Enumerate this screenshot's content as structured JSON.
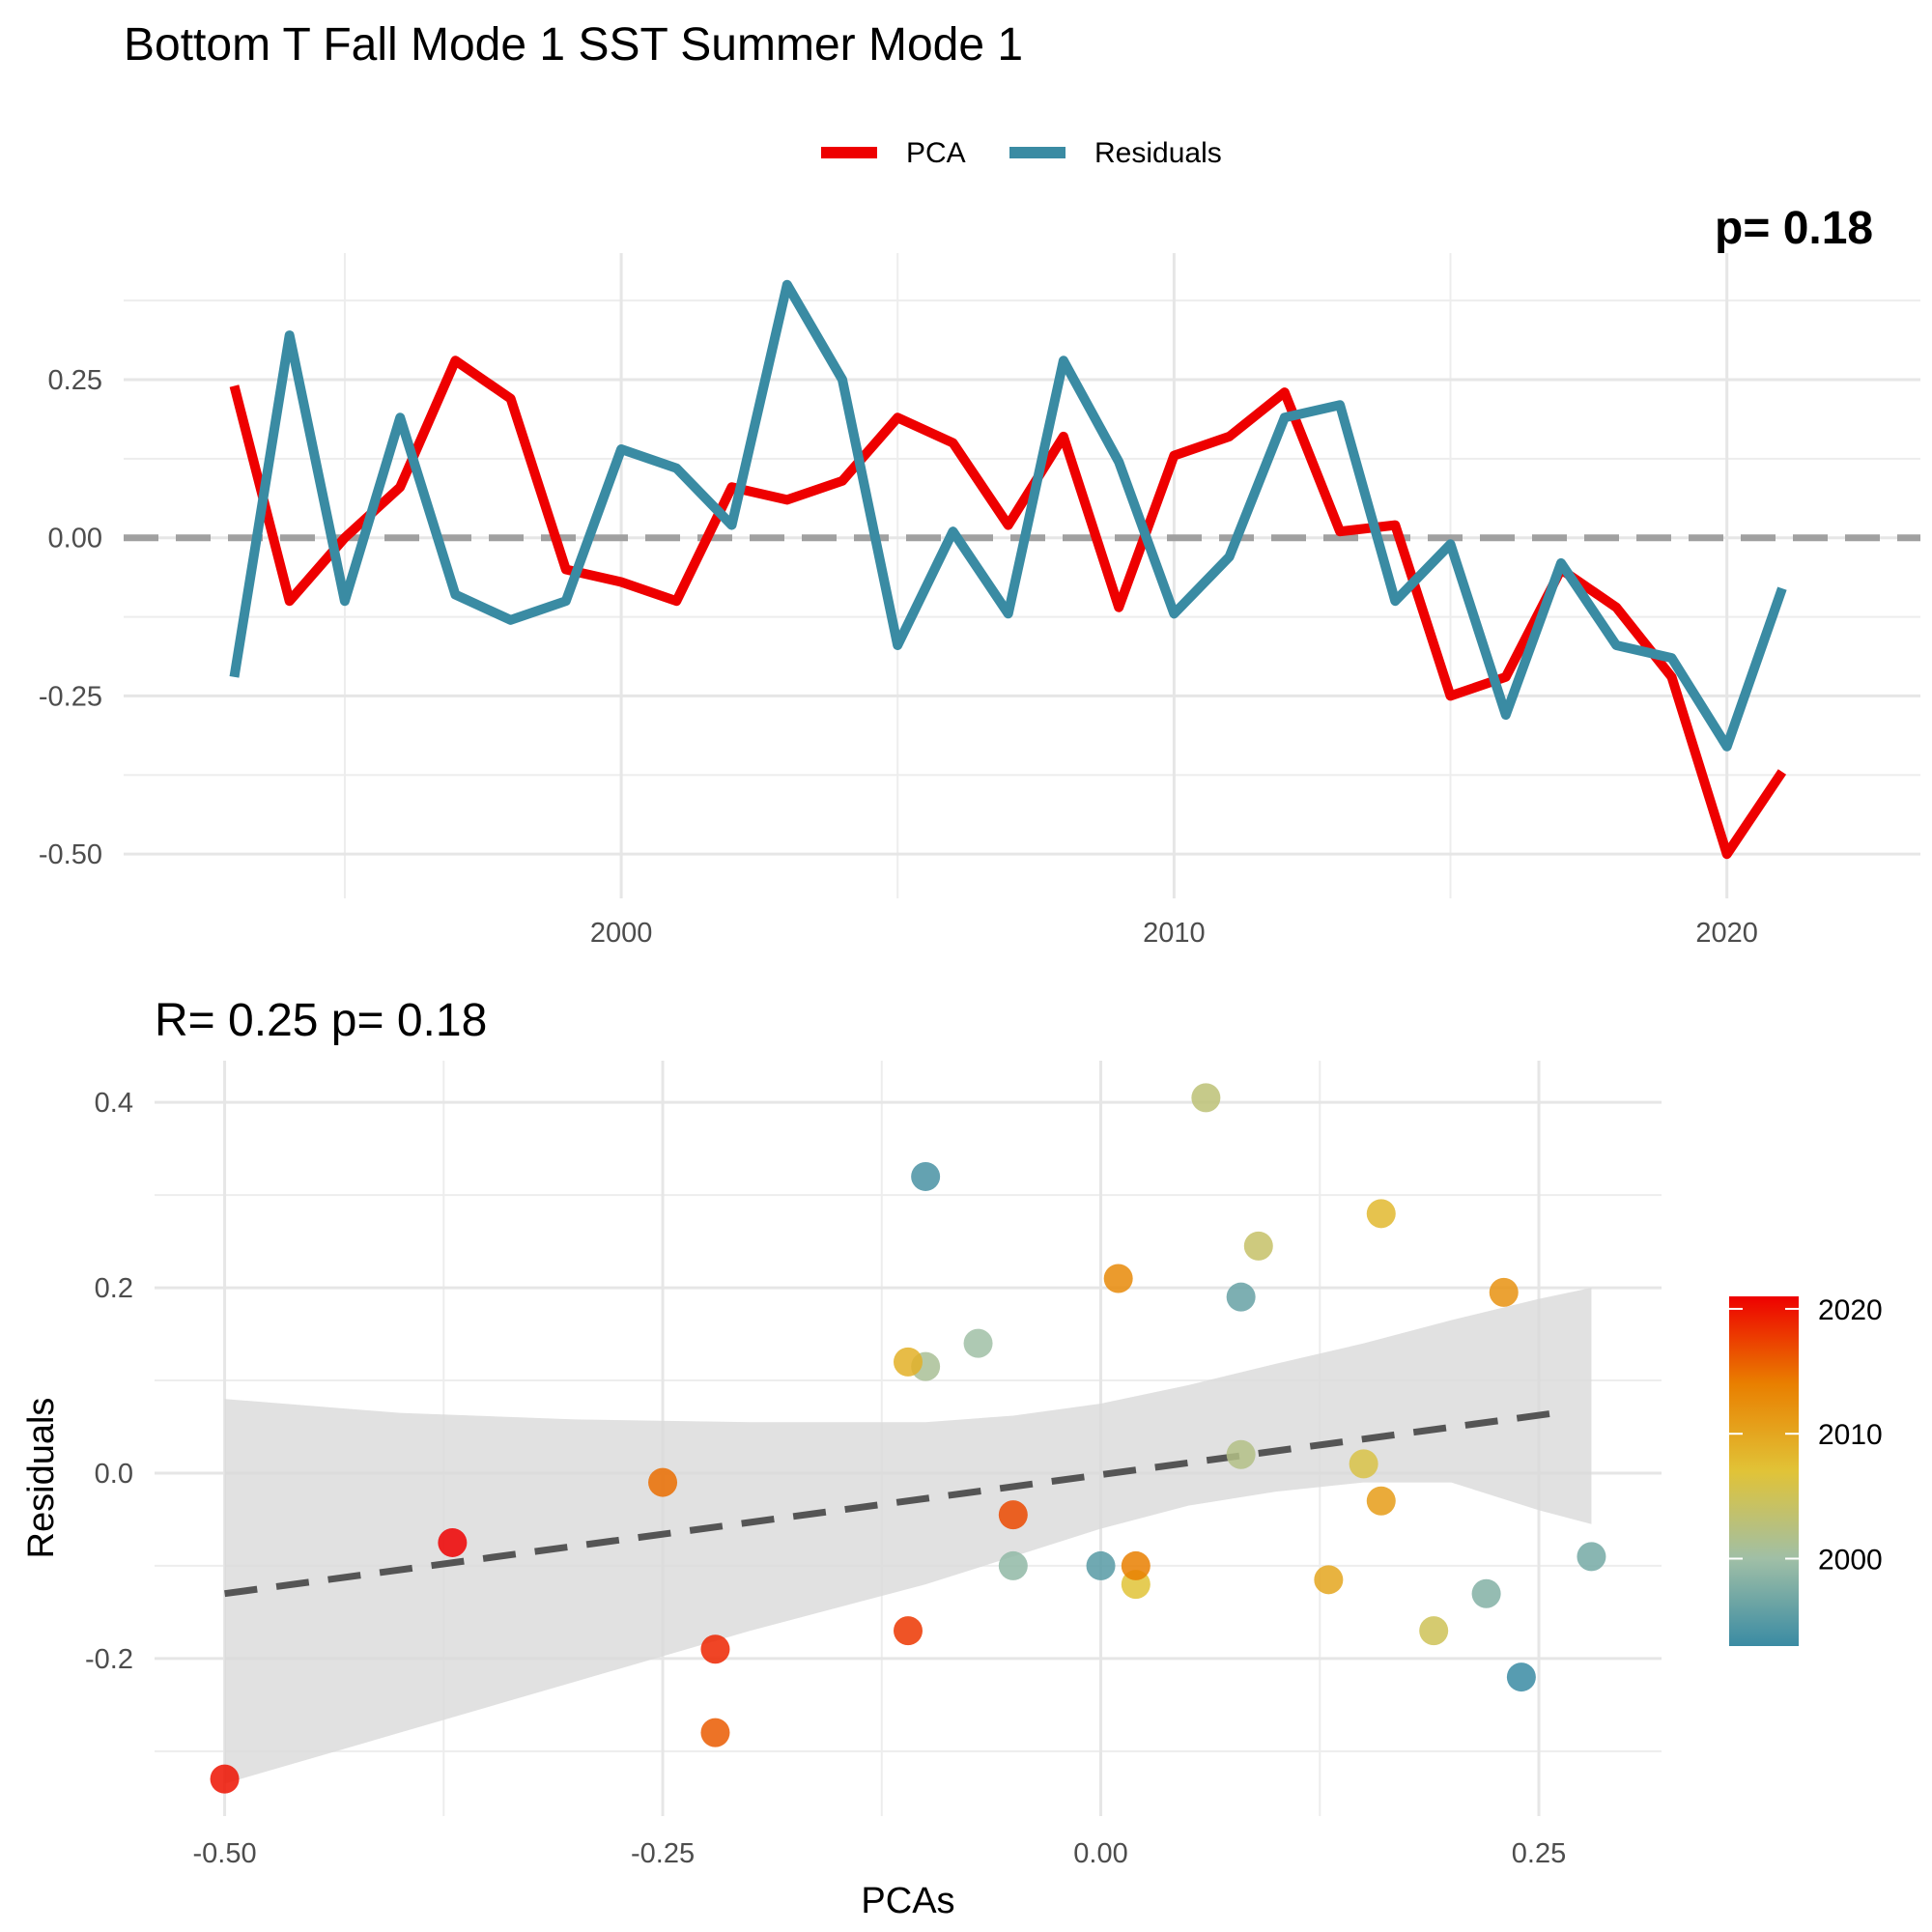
{
  "title": "Bottom T Fall Mode 1 SST Summer Mode 1",
  "colors": {
    "pca": "#EE0000",
    "residuals": "#3A8BA3",
    "zero_line": "#a0a0a0",
    "fit_line": "#555555",
    "ribbon": "#d9d9d9"
  },
  "chart_data": [
    {
      "type": "line",
      "title": "",
      "xlabel": "",
      "ylabel": "",
      "legend": {
        "position": "top",
        "entries": [
          "PCA",
          "Residuals"
        ]
      },
      "corner_text": "p= 0.18",
      "xlim": [
        1991,
        2023.5
      ],
      "ylim": [
        -0.57,
        0.45
      ],
      "xticks": [
        2000,
        2010,
        2020
      ],
      "xtick_labels": [
        "2000",
        "2010",
        "2020"
      ],
      "yticks": [
        -0.5,
        -0.25,
        0,
        0.25
      ],
      "ytick_labels": [
        "-0.50",
        "-0.25",
        "0.00",
        "0.25"
      ],
      "grid": true,
      "x": [
        1993,
        1994,
        1995,
        1996,
        1997,
        1998,
        1999,
        2000,
        2001,
        2002,
        2003,
        2004,
        2005,
        2006,
        2007,
        2008,
        2009,
        2010,
        2011,
        2012,
        2013,
        2014,
        2015,
        2016,
        2017,
        2018,
        2019,
        2020,
        2021
      ],
      "series": [
        {
          "name": "PCA",
          "values": [
            0.24,
            -0.1,
            0.0,
            0.08,
            0.28,
            0.22,
            -0.05,
            -0.07,
            -0.1,
            0.08,
            0.06,
            0.09,
            0.19,
            0.15,
            0.02,
            0.16,
            -0.11,
            0.13,
            0.16,
            0.23,
            0.01,
            0.02,
            -0.25,
            -0.22,
            -0.05,
            -0.11,
            -0.22,
            -0.5,
            -0.37
          ]
        },
        {
          "name": "Residuals",
          "values": [
            -0.22,
            0.32,
            -0.1,
            0.19,
            -0.09,
            -0.13,
            -0.1,
            0.14,
            0.11,
            0.02,
            0.4,
            0.25,
            -0.17,
            0.01,
            -0.12,
            0.28,
            0.12,
            -0.12,
            -0.03,
            0.19,
            0.21,
            -0.1,
            -0.01,
            -0.28,
            -0.04,
            -0.17,
            -0.19,
            -0.33,
            -0.08
          ]
        }
      ]
    },
    {
      "type": "scatter",
      "title": "R= 0.25  p= 0.18",
      "xlabel": "PCAs",
      "ylabel": "Residuals",
      "xlim": [
        -0.54,
        0.32
      ],
      "ylim": [
        -0.37,
        0.445
      ],
      "xticks": [
        -0.5,
        -0.25,
        0,
        0.25
      ],
      "xtick_labels": [
        "-0.50",
        "-0.25",
        "0.00",
        "0.25"
      ],
      "yticks": [
        -0.2,
        0,
        0.2,
        0.4
      ],
      "ytick_labels": [
        "-0.2",
        "0.0",
        "0.2",
        "0.4"
      ],
      "grid": true,
      "color_scale": {
        "label_values": [
          2000,
          2010,
          2020
        ],
        "labels": [
          "2000",
          "2010",
          "2020"
        ],
        "range": [
          1993,
          2021
        ],
        "colors": [
          "#3A8BA3",
          "#A0BFA6",
          "#E1C337",
          "#E97F00",
          "#EE0000"
        ]
      },
      "fit": {
        "x": [
          -0.5,
          0.26
        ],
        "y": [
          -0.13,
          0.065
        ]
      },
      "ribbon": {
        "x": [
          -0.5,
          -0.4,
          -0.3,
          -0.2,
          -0.1,
          -0.05,
          0.0,
          0.05,
          0.1,
          0.15,
          0.2,
          0.25,
          0.28
        ],
        "upper": [
          0.08,
          0.065,
          0.058,
          0.055,
          0.055,
          0.062,
          0.075,
          0.095,
          0.118,
          0.14,
          0.165,
          0.188,
          0.2
        ],
        "lower": [
          -0.335,
          -0.28,
          -0.225,
          -0.17,
          -0.12,
          -0.09,
          -0.06,
          -0.035,
          -0.02,
          -0.01,
          -0.01,
          -0.04,
          -0.055
        ]
      },
      "points": [
        {
          "x": 0.24,
          "y": -0.22,
          "year": 1993
        },
        {
          "x": -0.1,
          "y": 0.32,
          "year": 1994
        },
        {
          "x": 0.0,
          "y": -0.1,
          "year": 1995
        },
        {
          "x": 0.08,
          "y": 0.19,
          "year": 1996
        },
        {
          "x": 0.28,
          "y": -0.09,
          "year": 1997
        },
        {
          "x": 0.22,
          "y": -0.13,
          "year": 1998
        },
        {
          "x": -0.05,
          "y": -0.1,
          "year": 1999
        },
        {
          "x": -0.07,
          "y": 0.14,
          "year": 2000
        },
        {
          "x": -0.1,
          "y": 0.115,
          "year": 2001
        },
        {
          "x": 0.08,
          "y": 0.02,
          "year": 2002
        },
        {
          "x": 0.06,
          "y": 0.405,
          "year": 2003
        },
        {
          "x": 0.09,
          "y": 0.245,
          "year": 2004
        },
        {
          "x": 0.19,
          "y": -0.17,
          "year": 2005
        },
        {
          "x": 0.15,
          "y": 0.01,
          "year": 2006
        },
        {
          "x": 0.02,
          "y": -0.12,
          "year": 2007
        },
        {
          "x": 0.16,
          "y": 0.28,
          "year": 2008
        },
        {
          "x": -0.11,
          "y": 0.12,
          "year": 2009
        },
        {
          "x": 0.13,
          "y": -0.115,
          "year": 2010
        },
        {
          "x": 0.16,
          "y": -0.03,
          "year": 2011
        },
        {
          "x": 0.23,
          "y": 0.195,
          "year": 2012
        },
        {
          "x": 0.01,
          "y": 0.21,
          "year": 2013
        },
        {
          "x": 0.02,
          "y": -0.1,
          "year": 2014
        },
        {
          "x": -0.25,
          "y": -0.01,
          "year": 2015
        },
        {
          "x": -0.22,
          "y": -0.28,
          "year": 2016
        },
        {
          "x": -0.05,
          "y": -0.045,
          "year": 2017
        },
        {
          "x": -0.11,
          "y": -0.17,
          "year": 2018
        },
        {
          "x": -0.22,
          "y": -0.19,
          "year": 2019
        },
        {
          "x": -0.5,
          "y": -0.33,
          "year": 2020
        },
        {
          "x": -0.37,
          "y": -0.075,
          "year": 2021
        }
      ]
    }
  ]
}
